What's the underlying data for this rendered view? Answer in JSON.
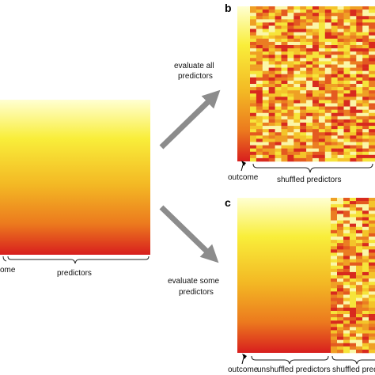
{
  "panel_a": {
    "outcome_label": "ome",
    "predictors_label": "predictors"
  },
  "arrow_top": {
    "label_line1": "evaluate all",
    "label_line2": "predictors"
  },
  "arrow_bottom": {
    "label_line1": "evaluate some",
    "label_line2": "predictors"
  },
  "panel_b": {
    "letter": "b",
    "outcome_label": "outcome",
    "predictors_label": "shuffled predictors"
  },
  "panel_c": {
    "letter": "c",
    "outcome_label": "outcome",
    "unshuffled_label": "unshuffled predictors",
    "shuffled_label": "shuffled predic"
  },
  "colors": {
    "yellow_light": "#ffffd2",
    "yellow": "#f2e020",
    "orange": "#ee8a1e",
    "red": "#d81e1e",
    "arrow": "#8c8c8c"
  }
}
